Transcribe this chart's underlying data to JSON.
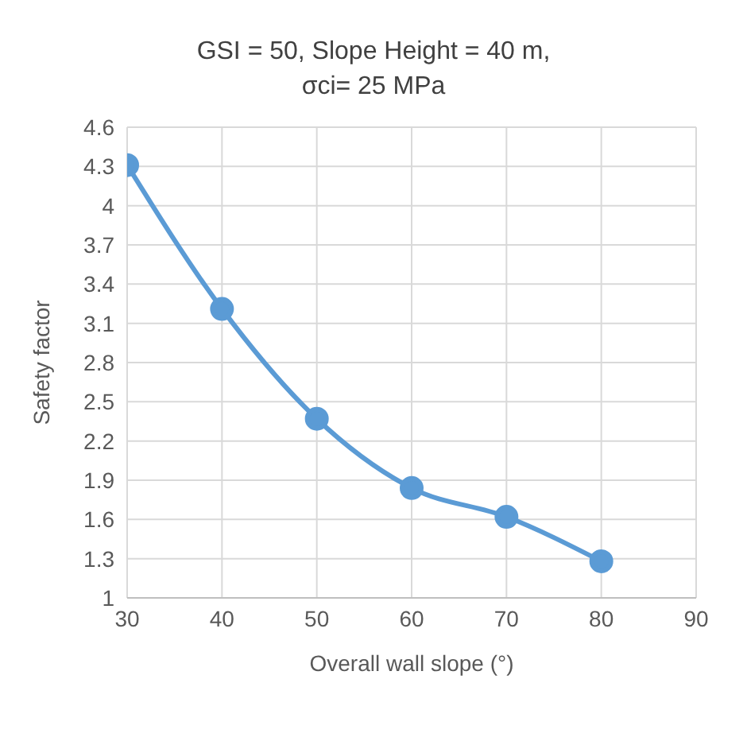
{
  "chart_data": {
    "type": "line",
    "title": "GSI = 50, Slope Height = 40 m,\nσci= 25 MPa",
    "xlabel": "Overall wall slope (°)",
    "ylabel": "Safety factor",
    "x": [
      30,
      40,
      50,
      60,
      70,
      80
    ],
    "series": [
      {
        "color": "#5b9bd5",
        "values": [
          4.31,
          3.21,
          2.37,
          1.84,
          1.62,
          1.28
        ]
      }
    ],
    "xlim": [
      30,
      90
    ],
    "xticks": [
      30,
      40,
      50,
      60,
      70,
      80,
      90
    ],
    "ylim": [
      1,
      4.6
    ],
    "yticks": [
      1,
      1.3,
      1.6,
      1.9,
      2.2,
      2.5,
      2.8,
      3.1,
      3.4,
      3.7,
      4,
      4.3,
      4.6
    ],
    "grid": true,
    "marker": "circle",
    "line_style": "solid",
    "legend": false
  }
}
